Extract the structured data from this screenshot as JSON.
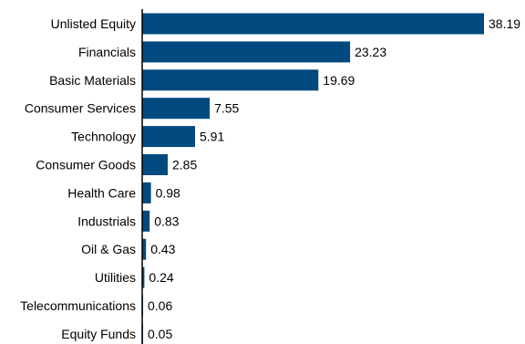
{
  "chart_data": {
    "type": "bar",
    "orientation": "horizontal",
    "title": "",
    "xlabel": "",
    "ylabel": "",
    "categories": [
      "Unlisted Equity",
      "Financials",
      "Basic Materials",
      "Consumer Services",
      "Technology",
      "Consumer Goods",
      "Health Care",
      "Industrials",
      "Oil & Gas",
      "Utilities",
      "Telecommunications",
      "Equity Funds"
    ],
    "values": [
      38.19,
      23.23,
      19.69,
      7.55,
      5.91,
      2.85,
      0.98,
      0.83,
      0.43,
      0.24,
      0.06,
      0.05
    ],
    "value_labels": [
      "38.19",
      "23.23",
      "19.69",
      "7.55",
      "5.91",
      "2.85",
      "0.98",
      "0.83",
      "0.43",
      "0.24",
      "0.06",
      "0.05"
    ],
    "xlim": [
      0,
      38.19
    ],
    "grid": false,
    "legend": "none",
    "colors": {
      "bar": "#004a80",
      "axis": "#000000",
      "text": "#000000"
    }
  }
}
